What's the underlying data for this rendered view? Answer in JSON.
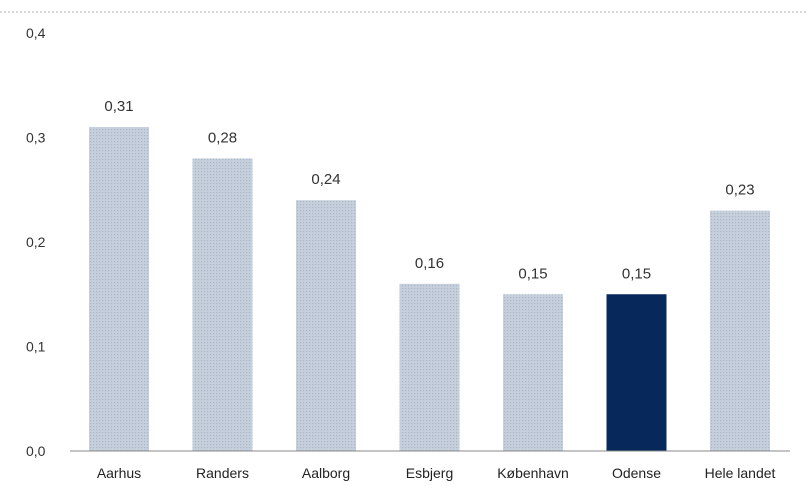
{
  "chart_data": {
    "type": "bar",
    "categories": [
      "Aarhus",
      "Randers",
      "Aalborg",
      "Esbjerg",
      "København",
      "Odense",
      "Hele landet"
    ],
    "values": [
      0.31,
      0.28,
      0.24,
      0.16,
      0.15,
      0.15,
      0.23
    ],
    "data_labels": [
      "0,31",
      "0,28",
      "0,24",
      "0,16",
      "0,15",
      "0,15",
      "0,23"
    ],
    "yticks": [
      0.0,
      0.1,
      0.2,
      0.3,
      0.4
    ],
    "ytick_labels": [
      "0,0",
      "0,1",
      "0,2",
      "0,3",
      "0,4"
    ],
    "ylim": [
      0,
      0.4
    ],
    "title": "",
    "xlabel": "",
    "ylabel": "",
    "grid": false,
    "legend": "none",
    "highlight_category": "Odense",
    "colors": {
      "bar": "#c6d0dc",
      "bar_pattern_dot": "#aab6c6",
      "highlight": "#06285a",
      "top_line": "#b0b0b0",
      "baseline": "#888888"
    }
  }
}
